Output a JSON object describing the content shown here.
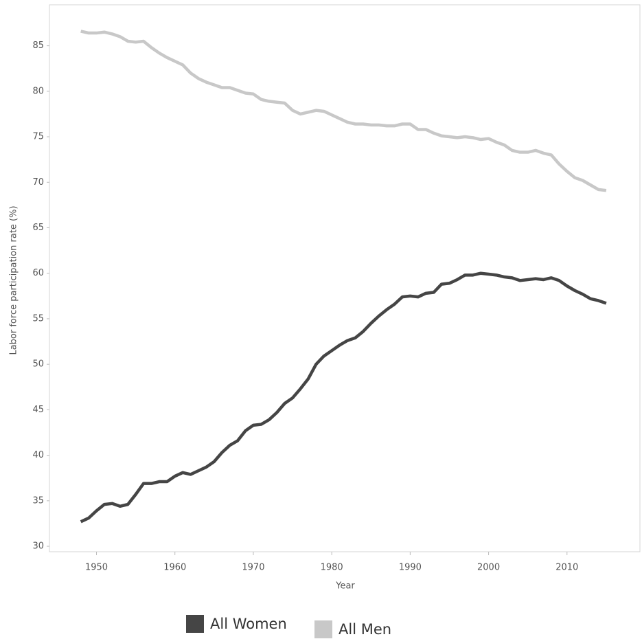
{
  "chart_data": {
    "type": "line",
    "x_label": "Year",
    "y_label": "Labor force participation rate (%)",
    "x": [
      1948,
      1949,
      1950,
      1951,
      1952,
      1953,
      1954,
      1955,
      1956,
      1957,
      1958,
      1959,
      1960,
      1961,
      1962,
      1963,
      1964,
      1965,
      1966,
      1967,
      1968,
      1969,
      1970,
      1971,
      1972,
      1973,
      1974,
      1975,
      1976,
      1977,
      1978,
      1979,
      1980,
      1981,
      1982,
      1983,
      1984,
      1985,
      1986,
      1987,
      1988,
      1989,
      1990,
      1991,
      1992,
      1993,
      1994,
      1995,
      1996,
      1997,
      1998,
      1999,
      2000,
      2001,
      2002,
      2003,
      2004,
      2005,
      2006,
      2007,
      2008,
      2009,
      2010,
      2011,
      2012,
      2013,
      2014,
      2015
    ],
    "series": [
      {
        "name": "All Women",
        "color": "#454545",
        "values": [
          32.7,
          33.1,
          33.9,
          34.6,
          34.7,
          34.4,
          34.6,
          35.7,
          36.9,
          36.9,
          37.1,
          37.1,
          37.7,
          38.1,
          37.9,
          38.3,
          38.7,
          39.3,
          40.3,
          41.1,
          41.6,
          42.7,
          43.3,
          43.4,
          43.9,
          44.7,
          45.7,
          46.3,
          47.3,
          48.4,
          50.0,
          50.9,
          51.5,
          52.1,
          52.6,
          52.9,
          53.6,
          54.5,
          55.3,
          56.0,
          56.6,
          57.4,
          57.5,
          57.4,
          57.8,
          57.9,
          58.8,
          58.9,
          59.3,
          59.8,
          59.8,
          60.0,
          59.9,
          59.8,
          59.6,
          59.5,
          59.2,
          59.3,
          59.4,
          59.3,
          59.5,
          59.2,
          58.6,
          58.1,
          57.7,
          57.2,
          57.0,
          56.7
        ]
      },
      {
        "name": "All Men",
        "color": "#c8c8c8",
        "values": [
          86.6,
          86.4,
          86.4,
          86.5,
          86.3,
          86.0,
          85.5,
          85.4,
          85.5,
          84.8,
          84.2,
          83.7,
          83.3,
          82.9,
          82.0,
          81.4,
          81.0,
          80.7,
          80.4,
          80.4,
          80.1,
          79.8,
          79.7,
          79.1,
          78.9,
          78.8,
          78.7,
          77.9,
          77.5,
          77.7,
          77.9,
          77.8,
          77.4,
          77.0,
          76.6,
          76.4,
          76.4,
          76.3,
          76.3,
          76.2,
          76.2,
          76.4,
          76.4,
          75.8,
          75.8,
          75.4,
          75.1,
          75.0,
          74.9,
          75.0,
          74.9,
          74.7,
          74.8,
          74.4,
          74.1,
          73.5,
          73.3,
          73.3,
          73.5,
          73.2,
          73.0,
          72.0,
          71.2,
          70.5,
          70.2,
          69.7,
          69.2,
          69.1
        ]
      }
    ],
    "xlim": [
      1944,
      2019.3
    ],
    "xticks": [
      1950,
      1960,
      1970,
      1980,
      1990,
      2000,
      2010
    ],
    "ylim": [
      29.4,
      89.5
    ],
    "yticks": [
      30,
      35,
      40,
      45,
      50,
      55,
      60,
      65,
      70,
      75,
      80,
      85
    ],
    "grid": false
  }
}
